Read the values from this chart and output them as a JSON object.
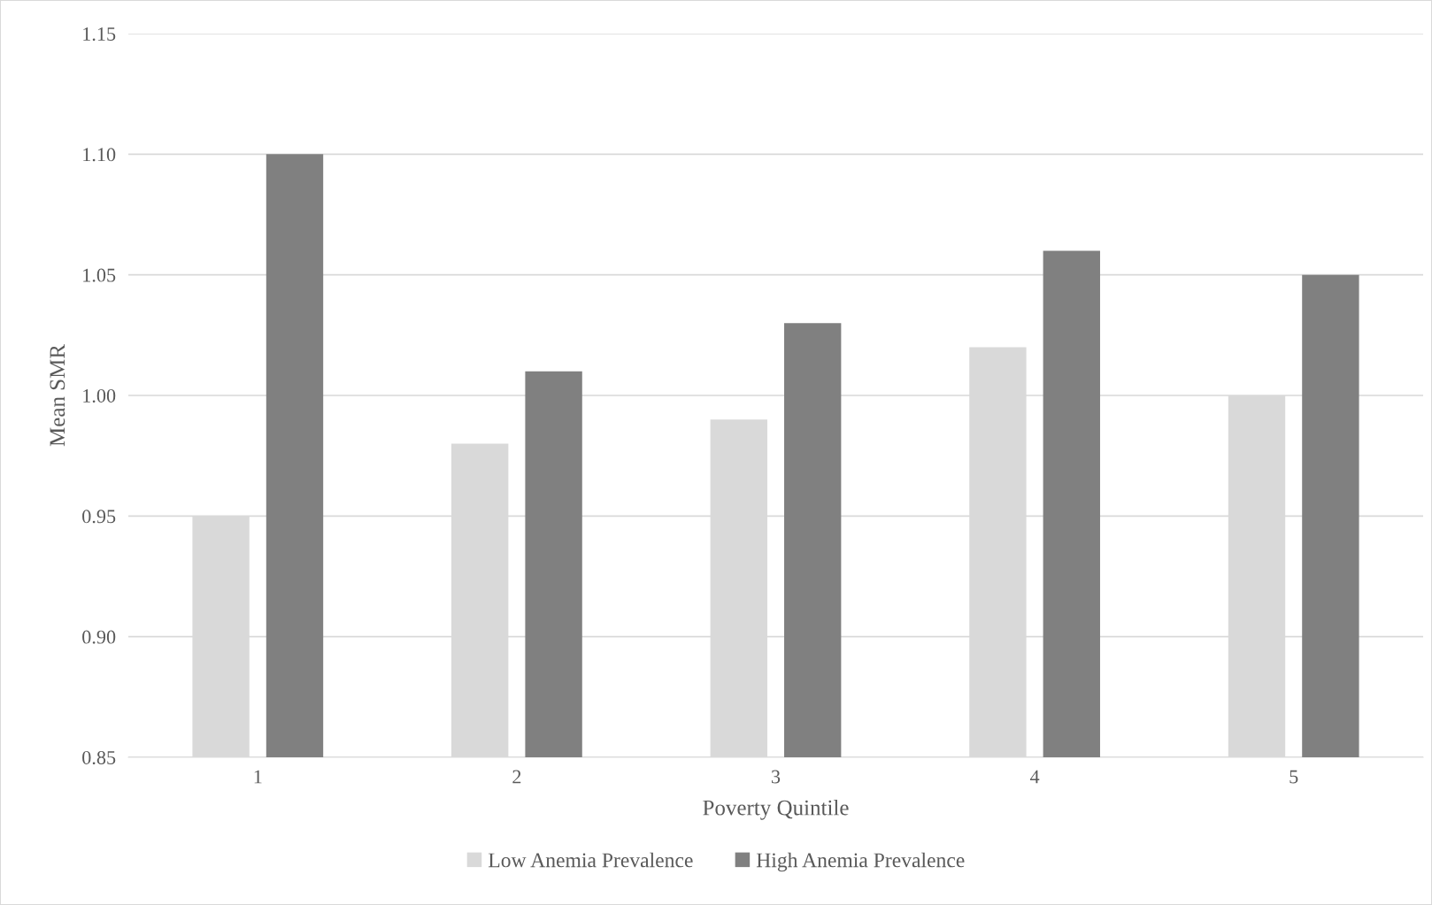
{
  "chart_data": {
    "type": "bar",
    "xlabel": "Poverty Quintile",
    "ylabel": "Mean SMR",
    "categories": [
      "1",
      "2",
      "3",
      "4",
      "5"
    ],
    "series": [
      {
        "name": "Low Anemia Prevalence",
        "color": "#d9d9d9",
        "values": [
          0.95,
          0.98,
          0.99,
          1.02,
          1.0
        ]
      },
      {
        "name": "High Anemia Prevalence",
        "color": "#808080",
        "values": [
          1.1,
          1.01,
          1.03,
          1.06,
          1.05
        ]
      }
    ],
    "ylim": [
      0.85,
      1.15
    ],
    "yticks": [
      {
        "value": 0.85,
        "label": "0.85"
      },
      {
        "value": 0.9,
        "label": "0.90"
      },
      {
        "value": 0.95,
        "label": "0.95"
      },
      {
        "value": 1.0,
        "label": "1.00"
      },
      {
        "value": 1.05,
        "label": "1.05"
      },
      {
        "value": 1.1,
        "label": "1.10"
      },
      {
        "value": 1.15,
        "label": "1.15"
      }
    ],
    "grid": "y",
    "legend": "bottom"
  }
}
